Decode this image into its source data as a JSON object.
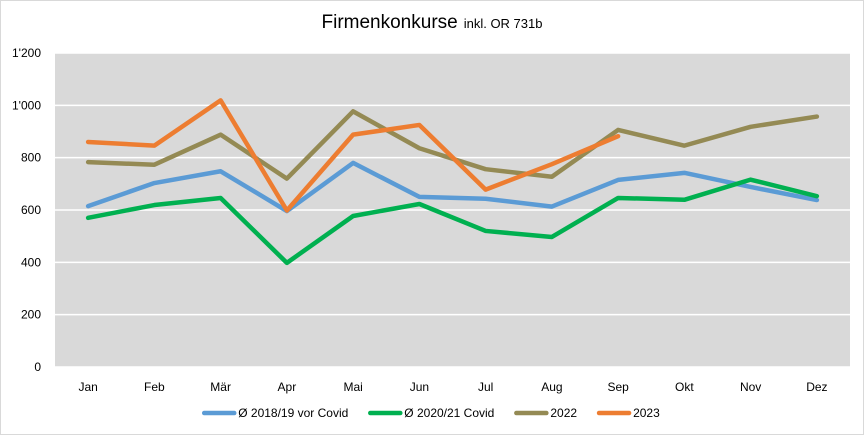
{
  "chart_data": {
    "type": "line",
    "title": "Firmenkonkurse",
    "subtitle": "inkl. OR 731b",
    "xlabel": "",
    "ylabel": "",
    "categories": [
      "Jan",
      "Feb",
      "Mär",
      "Apr",
      "Mai",
      "Jun",
      "Jul",
      "Aug",
      "Sep",
      "Okt",
      "Nov",
      "Dez"
    ],
    "ylim": [
      0,
      1200
    ],
    "yticks": [
      0,
      200,
      400,
      600,
      800,
      1000,
      1200
    ],
    "ytick_labels": [
      "0",
      "200",
      "400",
      "600",
      "800",
      "1'000",
      "1'200"
    ],
    "grid": true,
    "legend_position": "bottom",
    "background": "#d9d9d9",
    "series": [
      {
        "name": "Ø 2018/19 vor Covid",
        "color": "#5b9bd5",
        "values": [
          615,
          703,
          748,
          596,
          780,
          650,
          643,
          613,
          715,
          742,
          688,
          638
        ]
      },
      {
        "name": "Ø 2020/21 Covid",
        "color": "#00b050",
        "values": [
          570,
          619,
          646,
          398,
          577,
          623,
          520,
          497,
          646,
          639,
          716,
          653
        ]
      },
      {
        "name": "2022",
        "color": "#948a54",
        "values": [
          783,
          773,
          888,
          720,
          977,
          836,
          756,
          727,
          906,
          846,
          918,
          957
        ]
      },
      {
        "name": "2023",
        "color": "#ed7d31",
        "values": [
          860,
          846,
          1019,
          598,
          888,
          925,
          678,
          775,
          882,
          null,
          null,
          null
        ]
      }
    ]
  }
}
